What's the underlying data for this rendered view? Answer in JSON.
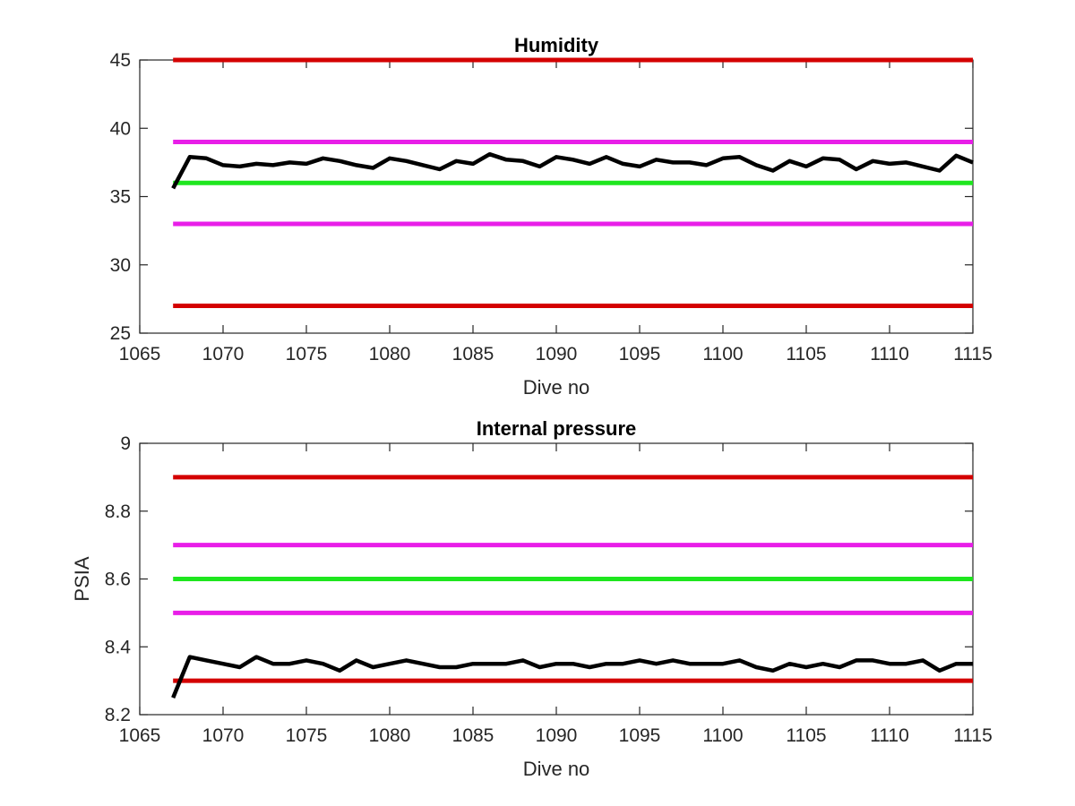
{
  "colors": {
    "red": "#d40000",
    "magenta": "#e81ee8",
    "green": "#1ee61e",
    "data": "#000000"
  },
  "chart_data": [
    {
      "type": "line",
      "title": "Humidity",
      "xlabel": "Dive no",
      "ylabel": "",
      "xlim": [
        1065,
        1115
      ],
      "ylim": [
        25,
        45
      ],
      "xticks": [
        1065,
        1070,
        1075,
        1080,
        1085,
        1090,
        1095,
        1100,
        1105,
        1110,
        1115
      ],
      "yticks": [
        25,
        30,
        35,
        40,
        45
      ],
      "grid": false,
      "thresholds": [
        {
          "y": 45,
          "color": "red"
        },
        {
          "y": 39,
          "color": "magenta"
        },
        {
          "y": 36,
          "color": "green"
        },
        {
          "y": 33,
          "color": "magenta"
        },
        {
          "y": 27,
          "color": "red"
        }
      ],
      "series": [
        {
          "x": [
            1067,
            1068,
            1069,
            1070,
            1071,
            1072,
            1073,
            1074,
            1075,
            1076,
            1077,
            1078,
            1079,
            1080,
            1081,
            1082,
            1083,
            1084,
            1085,
            1086,
            1087,
            1088,
            1089,
            1090,
            1091,
            1092,
            1093,
            1094,
            1095,
            1096,
            1097,
            1098,
            1099,
            1100,
            1101,
            1102,
            1103,
            1104,
            1105,
            1106,
            1107,
            1108,
            1109,
            1110,
            1111,
            1112,
            1113,
            1114,
            1115
          ],
          "y": [
            35.6,
            37.9,
            37.8,
            37.3,
            37.2,
            37.4,
            37.3,
            37.5,
            37.4,
            37.8,
            37.6,
            37.3,
            37.1,
            37.8,
            37.6,
            37.3,
            37.0,
            37.6,
            37.4,
            38.1,
            37.7,
            37.6,
            37.2,
            37.9,
            37.7,
            37.4,
            37.9,
            37.4,
            37.2,
            37.7,
            37.5,
            37.5,
            37.3,
            37.8,
            37.9,
            37.3,
            36.9,
            37.6,
            37.2,
            37.8,
            37.7,
            37.0,
            37.6,
            37.4,
            37.5,
            37.2,
            36.9,
            38.0,
            37.5
          ]
        }
      ]
    },
    {
      "type": "line",
      "title": "Internal pressure",
      "xlabel": "Dive no",
      "ylabel": "PSIA",
      "xlim": [
        1065,
        1115
      ],
      "ylim": [
        8.2,
        9
      ],
      "xticks": [
        1065,
        1070,
        1075,
        1080,
        1085,
        1090,
        1095,
        1100,
        1105,
        1110,
        1115
      ],
      "yticks": [
        8.2,
        8.4,
        8.6,
        8.8,
        9
      ],
      "ytick_labels": [
        "8.2",
        "8.4",
        "8.6",
        "8.8",
        "9"
      ],
      "grid": false,
      "thresholds": [
        {
          "y": 8.9,
          "color": "red"
        },
        {
          "y": 8.7,
          "color": "magenta"
        },
        {
          "y": 8.6,
          "color": "green"
        },
        {
          "y": 8.5,
          "color": "magenta"
        },
        {
          "y": 8.3,
          "color": "red"
        }
      ],
      "series": [
        {
          "x": [
            1067,
            1068,
            1069,
            1070,
            1071,
            1072,
            1073,
            1074,
            1075,
            1076,
            1077,
            1078,
            1079,
            1080,
            1081,
            1082,
            1083,
            1084,
            1085,
            1086,
            1087,
            1088,
            1089,
            1090,
            1091,
            1092,
            1093,
            1094,
            1095,
            1096,
            1097,
            1098,
            1099,
            1100,
            1101,
            1102,
            1103,
            1104,
            1105,
            1106,
            1107,
            1108,
            1109,
            1110,
            1111,
            1112,
            1113,
            1114,
            1115
          ],
          "y": [
            8.25,
            8.37,
            8.36,
            8.35,
            8.34,
            8.37,
            8.35,
            8.35,
            8.36,
            8.35,
            8.33,
            8.36,
            8.34,
            8.35,
            8.36,
            8.35,
            8.34,
            8.34,
            8.35,
            8.35,
            8.35,
            8.36,
            8.34,
            8.35,
            8.35,
            8.34,
            8.35,
            8.35,
            8.36,
            8.35,
            8.36,
            8.35,
            8.35,
            8.35,
            8.36,
            8.34,
            8.33,
            8.35,
            8.34,
            8.35,
            8.34,
            8.36,
            8.36,
            8.35,
            8.35,
            8.36,
            8.33,
            8.35,
            8.35
          ]
        }
      ]
    }
  ]
}
